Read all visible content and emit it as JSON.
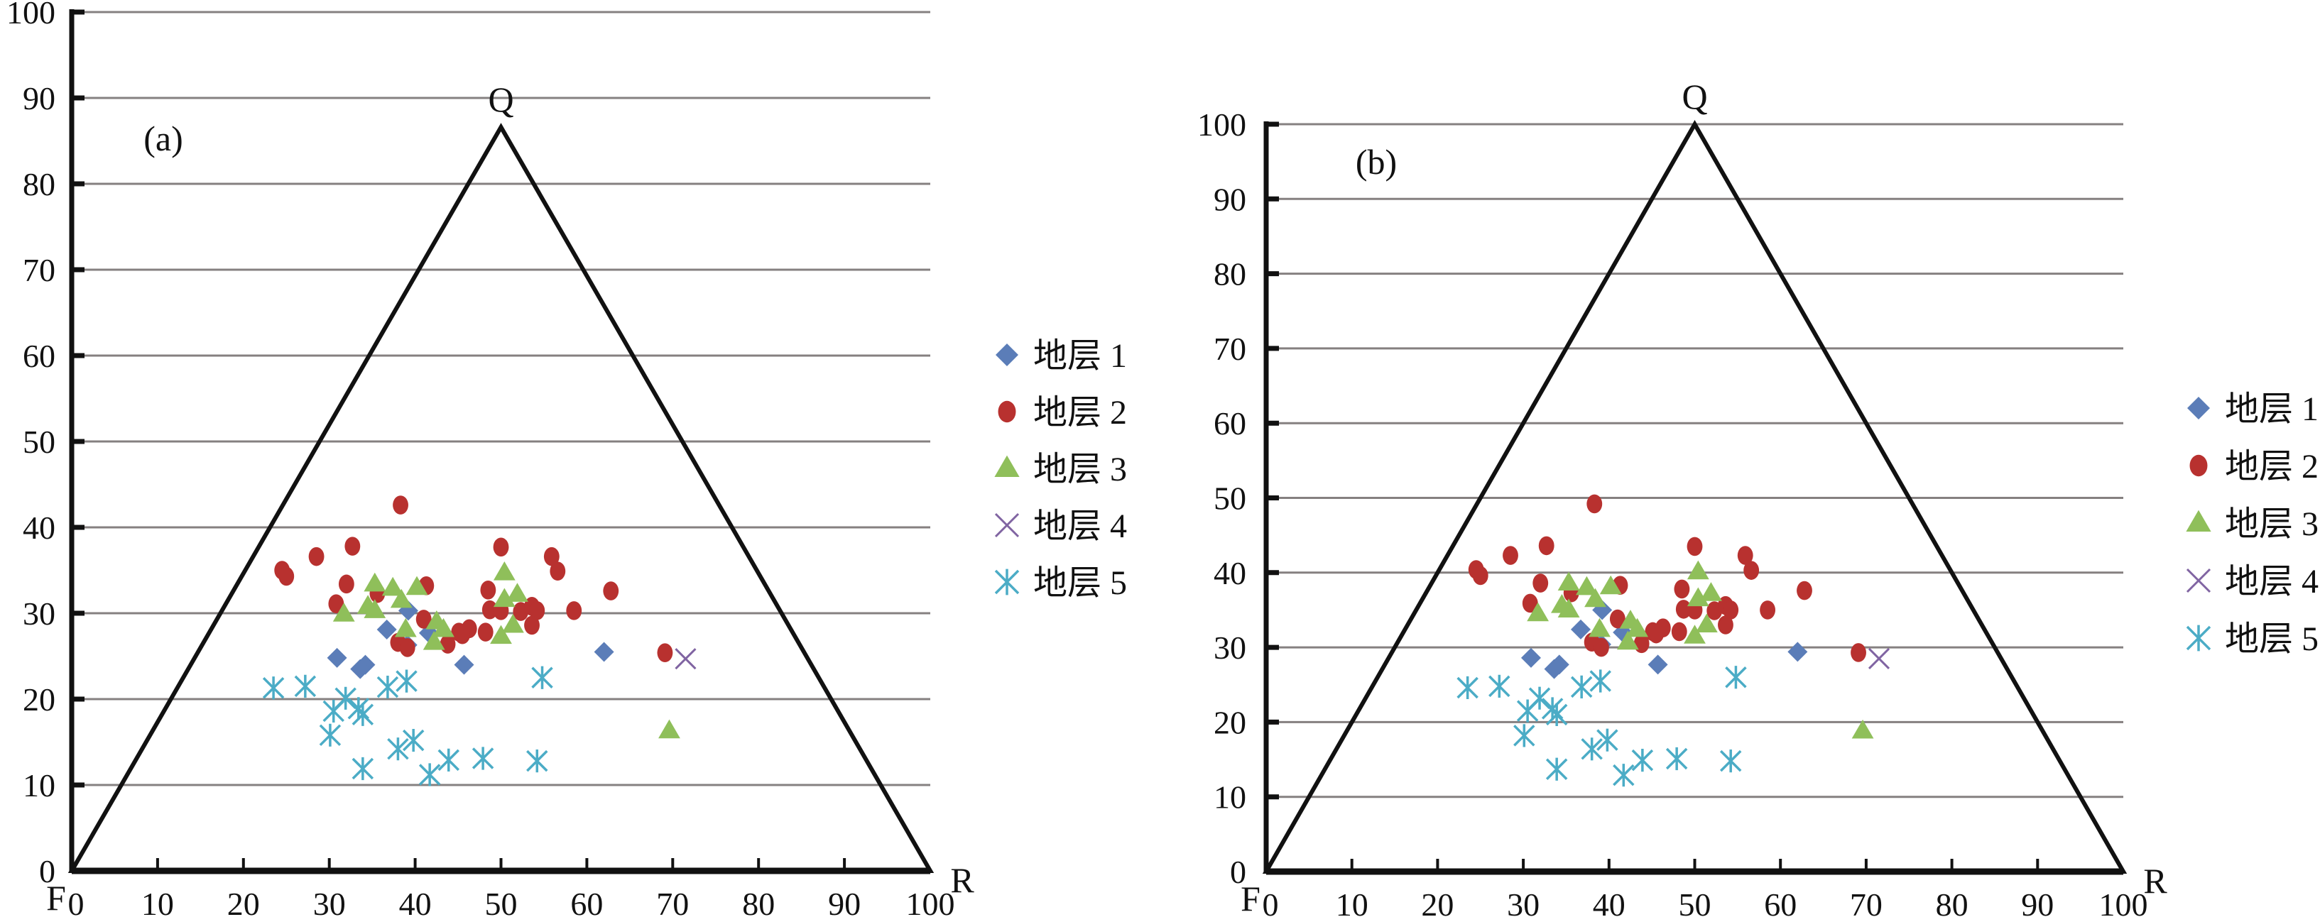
{
  "colors": {
    "layer1": "#5B7DB8",
    "layer2": "#B8312F",
    "layer3": "#8FBF5A",
    "layer4": "#8064A2",
    "layer5": "#4BACC6",
    "grid": "#858080",
    "axis": "#111111"
  },
  "chart_data": [
    {
      "type": "scatter",
      "title": "(a)",
      "vertex_labels": {
        "top": "Q",
        "left": "F",
        "right": "R"
      },
      "xlim": [
        0,
        100
      ],
      "ylim": [
        0,
        100
      ],
      "xticks": [
        "0",
        "10",
        "20",
        "30",
        "40",
        "50",
        "60",
        "70",
        "80",
        "90",
        "100"
      ],
      "yticks": [
        "0",
        "10",
        "20",
        "30",
        "40",
        "50",
        "60",
        "70",
        "80",
        "90",
        "100"
      ],
      "grid": true,
      "triangle_apex_y": 86.6,
      "legend_position": "right",
      "series": [
        {
          "name": "地层 1",
          "marker": "diamond",
          "points": [
            [
              39.2,
              30.3
            ],
            [
              36.7,
              28.1
            ],
            [
              41.6,
              27.7
            ],
            [
              39.1,
              26.3
            ],
            [
              30.9,
              24.8
            ],
            [
              34.2,
              24.0
            ],
            [
              33.6,
              23.5
            ],
            [
              45.7,
              24.0
            ],
            [
              62.0,
              25.5
            ]
          ]
        },
        {
          "name": "地层 2",
          "marker": "circle",
          "points": [
            [
              24.5,
              35.0
            ],
            [
              25.0,
              34.3
            ],
            [
              38.3,
              42.6
            ],
            [
              32.7,
              37.8
            ],
            [
              28.5,
              36.6
            ],
            [
              50.0,
              37.7
            ],
            [
              55.9,
              36.6
            ],
            [
              56.6,
              34.9
            ],
            [
              32.0,
              33.4
            ],
            [
              41.3,
              33.2
            ],
            [
              30.8,
              31.1
            ],
            [
              35.6,
              32.3
            ],
            [
              48.5,
              32.7
            ],
            [
              62.8,
              32.6
            ],
            [
              48.7,
              30.4
            ],
            [
              50.0,
              30.3
            ],
            [
              52.3,
              30.2
            ],
            [
              53.6,
              30.8
            ],
            [
              54.2,
              30.3
            ],
            [
              58.5,
              30.3
            ],
            [
              41.0,
              29.3
            ],
            [
              45.1,
              27.8
            ],
            [
              46.3,
              28.2
            ],
            [
              45.5,
              27.5
            ],
            [
              48.2,
              27.8
            ],
            [
              53.6,
              28.6
            ],
            [
              38.0,
              26.6
            ],
            [
              39.1,
              26.0
            ],
            [
              43.8,
              26.4
            ],
            [
              69.1,
              25.4
            ]
          ]
        },
        {
          "name": "地层 3",
          "marker": "triangle",
          "points": [
            [
              35.3,
              33.4
            ],
            [
              37.4,
              32.9
            ],
            [
              40.2,
              33.0
            ],
            [
              38.4,
              31.5
            ],
            [
              34.5,
              30.8
            ],
            [
              35.3,
              30.3
            ],
            [
              31.7,
              29.9
            ],
            [
              38.9,
              28.1
            ],
            [
              42.5,
              29.0
            ],
            [
              43.3,
              28.1
            ],
            [
              42.2,
              26.6
            ],
            [
              50.4,
              34.7
            ],
            [
              50.4,
              31.6
            ],
            [
              51.9,
              32.2
            ],
            [
              51.4,
              28.6
            ],
            [
              50.0,
              27.3
            ],
            [
              69.6,
              16.3
            ]
          ]
        },
        {
          "name": "地层 4",
          "marker": "x",
          "points": [
            [
              71.5,
              24.7
            ]
          ]
        },
        {
          "name": "地层 5",
          "marker": "star",
          "points": [
            [
              23.5,
              21.3
            ],
            [
              27.2,
              21.5
            ],
            [
              31.9,
              20.1
            ],
            [
              30.5,
              18.6
            ],
            [
              33.9,
              18.2
            ],
            [
              33.4,
              18.9
            ],
            [
              30.1,
              15.8
            ],
            [
              36.8,
              21.4
            ],
            [
              39.0,
              22.1
            ],
            [
              54.8,
              22.5
            ],
            [
              38.0,
              14.2
            ],
            [
              39.8,
              15.2
            ],
            [
              33.9,
              11.9
            ],
            [
              41.7,
              11.2
            ],
            [
              43.9,
              12.9
            ],
            [
              47.9,
              13.1
            ],
            [
              54.2,
              12.8
            ]
          ]
        }
      ]
    },
    {
      "type": "scatter",
      "title": "(b)",
      "vertex_labels": {
        "top": "Q",
        "left": "F",
        "right": "R"
      },
      "xlim": [
        0,
        100
      ],
      "ylim": [
        0,
        100
      ],
      "xticks": [
        "0",
        "10",
        "20",
        "30",
        "40",
        "50",
        "60",
        "70",
        "80",
        "90",
        "100"
      ],
      "yticks": [
        "0",
        "10",
        "20",
        "30",
        "40",
        "50",
        "60",
        "70",
        "80",
        "90",
        "100"
      ],
      "grid": true,
      "triangle_apex_y": 100,
      "legend_position": "right",
      "series": [
        {
          "name": "地层 1",
          "marker": "diamond",
          "points": [
            [
              39.2,
              35.0
            ],
            [
              36.7,
              32.4
            ],
            [
              41.6,
              32.0
            ],
            [
              39.1,
              30.4
            ],
            [
              30.9,
              28.6
            ],
            [
              34.2,
              27.7
            ],
            [
              33.6,
              27.1
            ],
            [
              45.7,
              27.7
            ],
            [
              62.0,
              29.4
            ]
          ]
        },
        {
          "name": "地层 2",
          "marker": "circle",
          "points": [
            [
              24.5,
              40.4
            ],
            [
              25.0,
              39.6
            ],
            [
              38.3,
              49.2
            ],
            [
              32.7,
              43.6
            ],
            [
              28.5,
              42.3
            ],
            [
              50.0,
              43.5
            ],
            [
              55.9,
              42.3
            ],
            [
              56.6,
              40.3
            ],
            [
              32.0,
              38.6
            ],
            [
              41.3,
              38.3
            ],
            [
              30.8,
              35.9
            ],
            [
              35.6,
              37.3
            ],
            [
              48.5,
              37.8
            ],
            [
              62.8,
              37.6
            ],
            [
              48.7,
              35.1
            ],
            [
              50.0,
              35.0
            ],
            [
              52.3,
              34.9
            ],
            [
              53.6,
              35.6
            ],
            [
              54.2,
              35.0
            ],
            [
              58.5,
              35.0
            ],
            [
              41.0,
              33.8
            ],
            [
              45.1,
              32.1
            ],
            [
              46.3,
              32.6
            ],
            [
              45.5,
              31.8
            ],
            [
              48.2,
              32.1
            ],
            [
              53.6,
              33.0
            ],
            [
              38.0,
              30.7
            ],
            [
              39.1,
              30.0
            ],
            [
              43.8,
              30.5
            ],
            [
              69.1,
              29.3
            ]
          ]
        },
        {
          "name": "地层 3",
          "marker": "triangle",
          "points": [
            [
              35.3,
              38.6
            ],
            [
              37.4,
              38.0
            ],
            [
              40.2,
              38.1
            ],
            [
              38.4,
              36.4
            ],
            [
              34.5,
              35.6
            ],
            [
              35.3,
              35.0
            ],
            [
              31.7,
              34.5
            ],
            [
              38.9,
              32.4
            ],
            [
              42.5,
              33.5
            ],
            [
              43.3,
              32.4
            ],
            [
              42.2,
              30.7
            ],
            [
              50.4,
              40.1
            ],
            [
              50.4,
              36.5
            ],
            [
              51.9,
              37.2
            ],
            [
              51.4,
              33.0
            ],
            [
              50.0,
              31.5
            ],
            [
              69.6,
              18.8
            ]
          ]
        },
        {
          "name": "地层 4",
          "marker": "x",
          "points": [
            [
              71.5,
              28.5
            ]
          ]
        },
        {
          "name": "地层 5",
          "marker": "star",
          "points": [
            [
              23.5,
              24.6
            ],
            [
              27.2,
              24.8
            ],
            [
              31.9,
              23.2
            ],
            [
              30.5,
              21.5
            ],
            [
              33.9,
              21.0
            ],
            [
              33.4,
              21.8
            ],
            [
              30.1,
              18.2
            ],
            [
              36.8,
              24.7
            ],
            [
              39.0,
              25.5
            ],
            [
              54.8,
              26.0
            ],
            [
              38.0,
              16.4
            ],
            [
              39.8,
              17.6
            ],
            [
              33.9,
              13.7
            ],
            [
              41.7,
              12.9
            ],
            [
              43.9,
              14.9
            ],
            [
              47.9,
              15.1
            ],
            [
              54.2,
              14.8
            ]
          ]
        }
      ]
    }
  ]
}
